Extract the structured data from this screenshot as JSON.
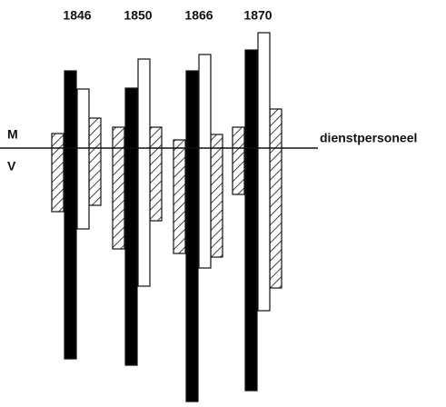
{
  "chart_data": {
    "type": "updown-bar",
    "categories": [
      "1846",
      "1850",
      "1866",
      "1870"
    ],
    "upper_label": "M",
    "lower_label": "V",
    "baseline_label": "dienstpersoneel",
    "series": [
      {
        "fill": "hatched",
        "color": "#000000",
        "up": [
          16,
          23,
          9,
          23
        ],
        "down": [
          70,
          111,
          116,
          51
        ]
      },
      {
        "fill": "solid",
        "color": "#000000",
        "up": [
          85,
          66,
          85,
          108
        ],
        "down": [
          232,
          239,
          279,
          267
        ]
      },
      {
        "fill": "solid",
        "color": "#ffffff",
        "up": [
          65,
          98,
          103,
          127
        ],
        "down": [
          89,
          152,
          132,
          179
        ]
      },
      {
        "fill": "hatched",
        "color": "#000000",
        "up": [
          33,
          23,
          15,
          43
        ],
        "down": [
          63,
          80,
          120,
          154
        ]
      }
    ]
  }
}
